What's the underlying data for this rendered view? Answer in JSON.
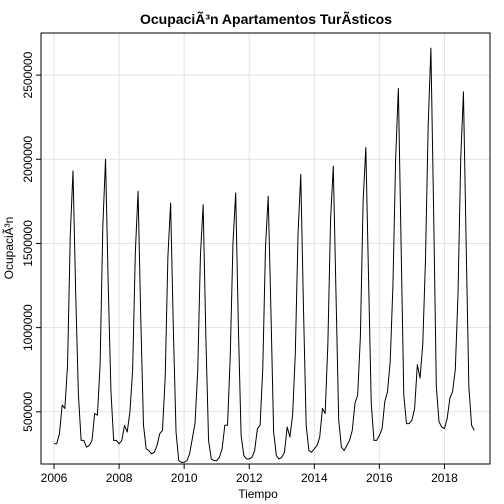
{
  "chart_data": {
    "type": "line",
    "title": "OcupaciÃ³n Apartamentos TurÃ­sticos",
    "xlabel": "Tiempo",
    "ylabel": "OcupaciÃ³n",
    "xlim": [
      2005.6,
      2019.4
    ],
    "ylim": [
      190000,
      2750000
    ],
    "grid": true,
    "x_ticks": [
      2006,
      2008,
      2010,
      2012,
      2014,
      2016,
      2018
    ],
    "x_tick_labels": [
      "2006",
      "2008",
      "2010",
      "2012",
      "2014",
      "2016",
      "2018"
    ],
    "y_ticks": [
      500000,
      1000000,
      1500000,
      2000000,
      2500000
    ],
    "y_tick_labels": [
      "500000",
      "1000000",
      "1500000",
      "2000000",
      "2500000"
    ],
    "series": [
      {
        "start": 2006.0,
        "frequency": 12,
        "color": "#000000",
        "values": [
          310000,
          310000,
          370000,
          540000,
          520000,
          780000,
          1550000,
          1930000,
          1200000,
          600000,
          330000,
          330000,
          290000,
          300000,
          330000,
          490000,
          480000,
          780000,
          1600000,
          2000000,
          1250000,
          620000,
          330000,
          330000,
          310000,
          330000,
          420000,
          380000,
          500000,
          750000,
          1450000,
          1810000,
          1050000,
          420000,
          280000,
          270000,
          250000,
          260000,
          300000,
          370000,
          390000,
          700000,
          1420000,
          1740000,
          1000000,
          380000,
          210000,
          200000,
          200000,
          210000,
          250000,
          340000,
          430000,
          740000,
          1430000,
          1730000,
          950000,
          330000,
          220000,
          210000,
          210000,
          230000,
          280000,
          420000,
          420000,
          830000,
          1500000,
          1800000,
          1000000,
          360000,
          240000,
          220000,
          220000,
          230000,
          270000,
          400000,
          420000,
          760000,
          1480000,
          1780000,
          1100000,
          380000,
          240000,
          220000,
          230000,
          260000,
          410000,
          350000,
          480000,
          850000,
          1560000,
          1910000,
          1120000,
          420000,
          270000,
          260000,
          280000,
          300000,
          350000,
          520000,
          490000,
          900000,
          1640000,
          1960000,
          1200000,
          450000,
          290000,
          270000,
          300000,
          330000,
          390000,
          550000,
          600000,
          950000,
          1750000,
          2070000,
          1300000,
          550000,
          330000,
          330000,
          360000,
          400000,
          560000,
          620000,
          800000,
          1250000,
          2000000,
          2420000,
          1500000,
          600000,
          430000,
          430000,
          450000,
          520000,
          780000,
          700000,
          900000,
          1400000,
          2200000,
          2660000,
          1700000,
          650000,
          440000,
          410000,
          400000,
          460000,
          580000,
          620000,
          750000,
          1200000,
          2000000,
          2400000,
          1500000,
          650000,
          420000,
          390000
        ]
      }
    ]
  }
}
